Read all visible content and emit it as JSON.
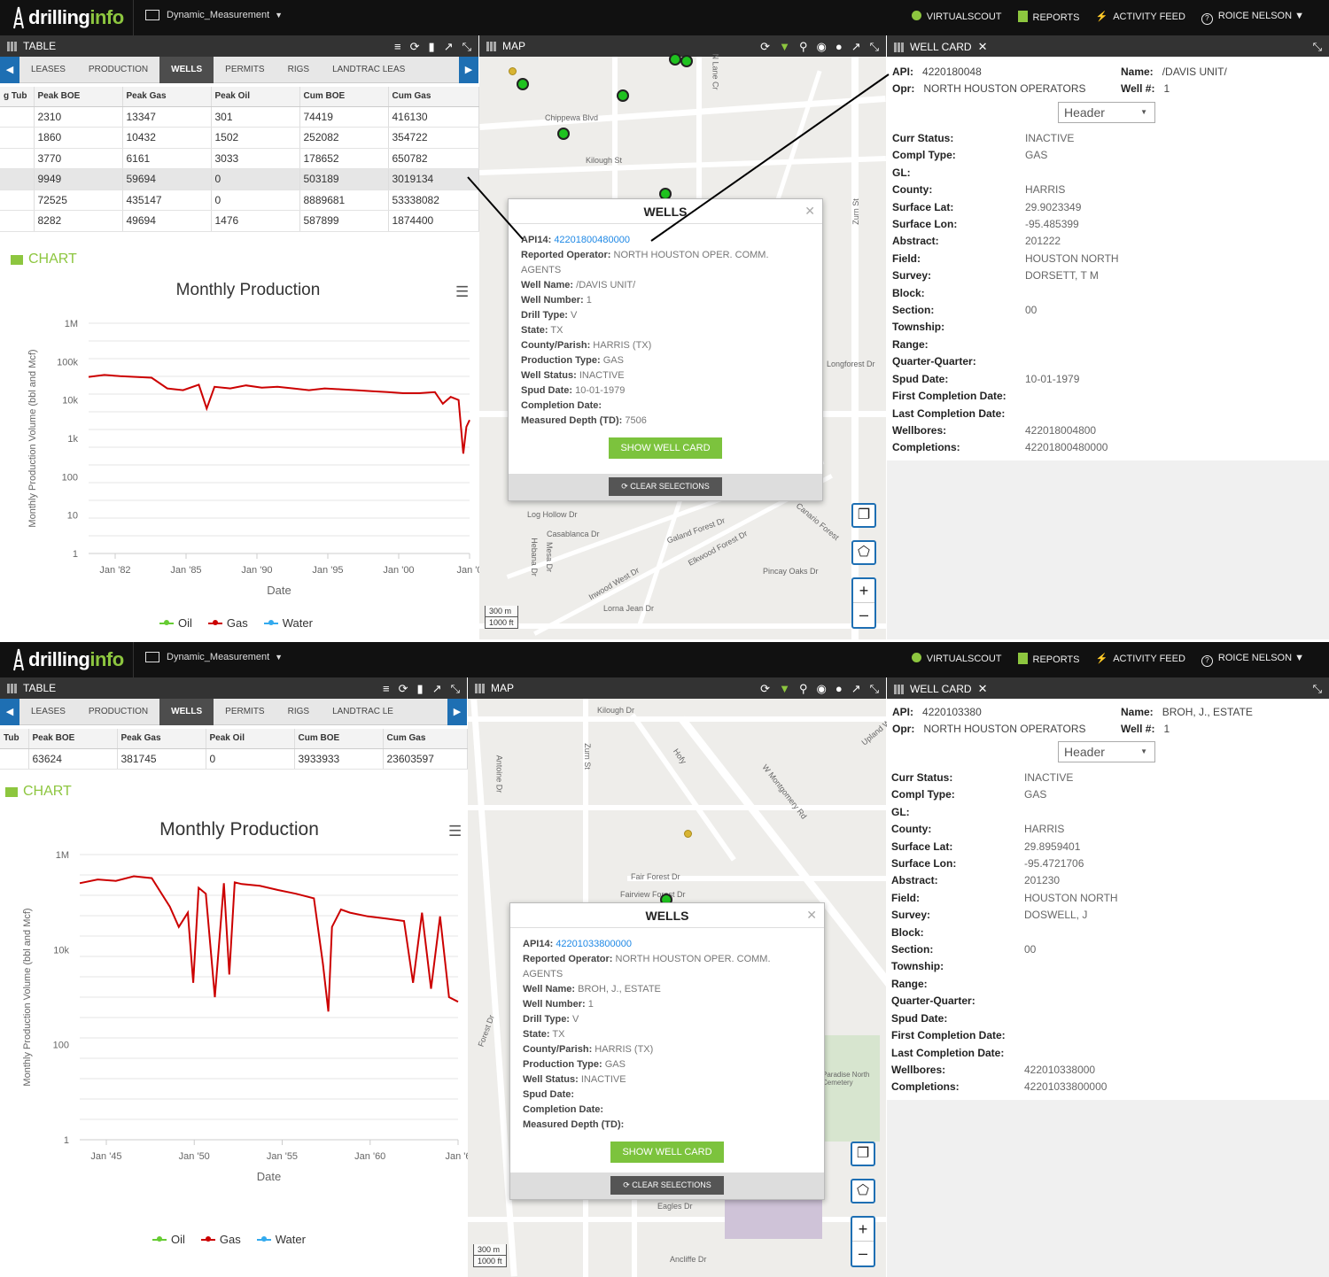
{
  "screens": [
    {
      "topbar": {
        "logo_a": "drilling",
        "logo_b": "info",
        "workspace": "Dynamic_Measurement",
        "nav": [
          "VIRTUALSCOUT",
          "REPORTS",
          "ACTIVITY FEED",
          "ROICE NELSON"
        ]
      },
      "table_panel": {
        "title": "TABLE",
        "tabs": [
          "LEASES",
          "PRODUCTION",
          "WELLS",
          "PERMITS",
          "RIGS",
          "LANDTRAC LEAS"
        ],
        "active_tab": "WELLS",
        "columns": [
          "g Tub",
          "Peak BOE",
          "Peak Gas",
          "Peak Oil",
          "Cum BOE",
          "Cum Gas"
        ],
        "rows": [
          [
            "",
            "2310",
            "13347",
            "301",
            "74419",
            "416130"
          ],
          [
            "",
            "1860",
            "10432",
            "1502",
            "252082",
            "354722"
          ],
          [
            "",
            "3770",
            "6161",
            "3033",
            "178652",
            "650782"
          ],
          [
            "",
            "9949",
            "59694",
            "0",
            "503189",
            "3019134"
          ],
          [
            "",
            "72525",
            "435147",
            "0",
            "8889681",
            "53338082"
          ],
          [
            "",
            "8282",
            "49694",
            "1476",
            "587899",
            "1874400"
          ]
        ]
      },
      "chart_panel": {
        "title": "CHART",
        "menu_icon": "hamburger-icon"
      },
      "chart_data": {
        "type": "line",
        "title": "Monthly Production",
        "xlabel": "Date",
        "ylabel": "Monthly Production Volume (bbl and Mcf)",
        "yscale": "log",
        "ylim": [
          1,
          1000000
        ],
        "y_ticks": [
          "1M",
          "100k",
          "10k",
          "1k",
          "100",
          "10",
          "1"
        ],
        "x_ticks": [
          "Jan '82",
          "Jan '85",
          "Jan '90",
          "Jan '95",
          "Jan '00",
          "Jan '0"
        ],
        "legend": [
          "Oil",
          "Gas",
          "Water"
        ],
        "legend_position": "bottom",
        "series": [
          {
            "name": "Gas",
            "color": "#cc0000",
            "x": [
              1980.0,
              1981.0,
              1982.0,
              1983.0,
              1984.0,
              1985.0,
              1986.0,
              1987.0,
              1987.5,
              1988.0,
              1989.0,
              1990.0,
              1991.0,
              1992.0,
              1993.0,
              1994.0,
              1995.0,
              1996.0,
              1997.0,
              1998.0,
              1999.0,
              2000.0,
              2001.0,
              2002.0,
              2002.5,
              2003.0,
              2003.5,
              2003.8,
              2004.0,
              2004.2
            ],
            "y": [
              40000,
              45000,
              42000,
              40000,
              38000,
              20000,
              18000,
              25000,
              6000,
              22000,
              20000,
              24000,
              21000,
              22000,
              20000,
              18000,
              20000,
              19000,
              18000,
              17000,
              16000,
              15000,
              15000,
              16000,
              8000,
              12000,
              10000,
              400,
              2000,
              3000
            ]
          }
        ]
      },
      "map_panel": {
        "title": "MAP",
        "streets": [
          "Chippewa Blvd",
          "Kilough St",
          "N Lane Cr",
          "Zurn St",
          "Log Hollow Dr",
          "Casablanca Dr",
          "Galand Forest Dr",
          "Elkwood Forest Dr",
          "Inwood West Dr",
          "Pincay Oaks Dr",
          "Lorna Jean Dr",
          "Hebana Dr",
          "Mesa Dr",
          "Longforest Dr",
          "Canario Forest"
        ],
        "scale": [
          "300 m",
          "1000 ft"
        ],
        "popup": {
          "title": "WELLS",
          "api_label": "API14:",
          "api": "42201800480000",
          "fields": [
            [
              "Reported Operator:",
              "NORTH HOUSTON OPER. COMM. AGENTS"
            ],
            [
              "Well Name:",
              "/DAVIS UNIT/"
            ],
            [
              "Well Number:",
              "1"
            ],
            [
              "Drill Type:",
              "V"
            ],
            [
              "State:",
              "TX"
            ],
            [
              "County/Parish:",
              "HARRIS (TX)"
            ],
            [
              "Production Type:",
              "GAS"
            ],
            [
              "Well Status:",
              "INACTIVE"
            ],
            [
              "Spud Date:",
              "10-01-1979"
            ],
            [
              "Completion Date:",
              ""
            ],
            [
              "Measured Depth (TD):",
              "7506"
            ]
          ],
          "show_btn": "SHOW WELL CARD",
          "clear_btn": "CLEAR SELECTIONS"
        }
      },
      "well_card": {
        "title": "WELL CARD",
        "api_label": "API:",
        "api": "4220180048",
        "name_label": "Name:",
        "name": "/DAVIS UNIT/",
        "opr_label": "Opr:",
        "opr": "NORTH HOUSTON OPERATORS",
        "wellno_label": "Well #:",
        "wellno": "1",
        "select": "Header",
        "fields": [
          [
            "Curr Status:",
            "INACTIVE"
          ],
          [
            "Compl Type:",
            "GAS"
          ],
          [
            "GL:",
            ""
          ],
          [
            "County:",
            "HARRIS"
          ],
          [
            "Surface Lat:",
            "29.9023349"
          ],
          [
            "Surface Lon:",
            "-95.485399"
          ],
          [
            "Abstract:",
            "201222"
          ],
          [
            "Field:",
            "HOUSTON NORTH"
          ],
          [
            "Survey:",
            "DORSETT, T M"
          ],
          [
            "Block:",
            ""
          ],
          [
            "Section:",
            "00"
          ],
          [
            "Township:",
            ""
          ],
          [
            "Range:",
            ""
          ],
          [
            "Quarter-Quarter:",
            ""
          ],
          [
            "Spud Date:",
            "10-01-1979"
          ],
          [
            "First Completion Date:",
            ""
          ],
          [
            "Last Completion Date:",
            ""
          ],
          [
            "Wellbores:",
            "422018004800"
          ],
          [
            "Completions:",
            "42201800480000"
          ]
        ]
      }
    },
    {
      "topbar": {
        "logo_a": "drilling",
        "logo_b": "info",
        "workspace": "Dynamic_Measurement",
        "nav": [
          "VIRTUALSCOUT",
          "REPORTS",
          "ACTIVITY FEED",
          "ROICE NELSON"
        ]
      },
      "table_panel": {
        "title": "TABLE",
        "tabs": [
          "LEASES",
          "PRODUCTION",
          "WELLS",
          "PERMITS",
          "RIGS",
          "LANDTRAC LE"
        ],
        "active_tab": "WELLS",
        "columns": [
          "Tub",
          "Peak BOE",
          "Peak Gas",
          "Peak Oil",
          "Cum BOE",
          "Cum Gas"
        ],
        "rows": [
          [
            "",
            "63624",
            "381745",
            "0",
            "3933933",
            "23603597"
          ]
        ]
      },
      "chart_panel": {
        "title": "CHART",
        "menu_icon": "hamburger-icon"
      },
      "chart_data": {
        "type": "line",
        "title": "Monthly Production",
        "xlabel": "Date",
        "ylabel": "Monthly Production Volume (bbl and Mcf)",
        "yscale": "log",
        "ylim": [
          1,
          1000000
        ],
        "y_ticks": [
          "1M",
          "10k",
          "100",
          "1"
        ],
        "x_ticks": [
          "Jan '45",
          "Jan '50",
          "Jan '55",
          "Jan '60",
          "Jan '6"
        ],
        "legend": [
          "Oil",
          "Gas",
          "Water"
        ],
        "legend_position": "bottom",
        "series": [
          {
            "name": "Gas",
            "color": "#cc0000",
            "x": [
              1945.0,
              1946.0,
              1947.0,
              1948.0,
              1949.0,
              1950.0,
              1950.5,
              1951.0,
              1951.3,
              1951.6,
              1952.0,
              1952.5,
              1953.0,
              1953.3,
              1953.6,
              1954.0,
              1955.0,
              1956.0,
              1957.0,
              1958.0,
              1958.5,
              1958.8,
              1959.0,
              1959.5,
              1960.0,
              1961.0,
              1962.0,
              1963.0,
              1963.5,
              1964.0,
              1964.5,
              1965.0,
              1965.5,
              1966.0
            ],
            "y": [
              250000,
              300000,
              280000,
              350000,
              320000,
              80000,
              30000,
              60000,
              2000,
              200000,
              150000,
              1000,
              250000,
              3000,
              260000,
              240000,
              220000,
              180000,
              150000,
              120000,
              5000,
              500,
              30000,
              70000,
              60000,
              50000,
              45000,
              40000,
              2000,
              60000,
              1500,
              50000,
              1000,
              800
            ]
          }
        ]
      },
      "map_panel": {
        "title": "MAP",
        "streets": [
          "Kilough Dr",
          "Zurn St",
          "Antoine Dr",
          "Hofy",
          "W Montgomery Rd",
          "Fair Forest Dr",
          "Fairview Forest Dr",
          "Eagles Dr",
          "Ancliffe Dr",
          "Upland Way",
          "Forest Dr",
          "Paradise North Cemetery"
        ],
        "scale": [
          "300 m",
          "1000 ft"
        ],
        "popup": {
          "title": "WELLS",
          "api_label": "API14:",
          "api": "42201033800000",
          "fields": [
            [
              "Reported Operator:",
              "NORTH HOUSTON OPER. COMM. AGENTS"
            ],
            [
              "Well Name:",
              "BROH, J., ESTATE"
            ],
            [
              "Well Number:",
              "1"
            ],
            [
              "Drill Type:",
              "V"
            ],
            [
              "State:",
              "TX"
            ],
            [
              "County/Parish:",
              "HARRIS (TX)"
            ],
            [
              "Production Type:",
              "GAS"
            ],
            [
              "Well Status:",
              "INACTIVE"
            ],
            [
              "Spud Date:",
              ""
            ],
            [
              "Completion Date:",
              ""
            ],
            [
              "Measured Depth (TD):",
              ""
            ]
          ],
          "show_btn": "SHOW WELL CARD",
          "clear_btn": "CLEAR SELECTIONS"
        }
      },
      "well_card": {
        "title": "WELL CARD",
        "api_label": "API:",
        "api": "4220103380",
        "name_label": "Name:",
        "name": "BROH, J., ESTATE",
        "opr_label": "Opr:",
        "opr": "NORTH HOUSTON OPERATORS",
        "wellno_label": "Well #:",
        "wellno": "1",
        "select": "Header",
        "fields": [
          [
            "Curr Status:",
            "INACTIVE"
          ],
          [
            "Compl Type:",
            "GAS"
          ],
          [
            "GL:",
            ""
          ],
          [
            "County:",
            "HARRIS"
          ],
          [
            "Surface Lat:",
            "29.8959401"
          ],
          [
            "Surface Lon:",
            "-95.4721706"
          ],
          [
            "Abstract:",
            "201230"
          ],
          [
            "Field:",
            "HOUSTON NORTH"
          ],
          [
            "Survey:",
            "DOSWELL, J"
          ],
          [
            "Block:",
            ""
          ],
          [
            "Section:",
            "00"
          ],
          [
            "Township:",
            ""
          ],
          [
            "Range:",
            ""
          ],
          [
            "Quarter-Quarter:",
            ""
          ],
          [
            "Spud Date:",
            ""
          ],
          [
            "First Completion Date:",
            ""
          ],
          [
            "Last Completion Date:",
            ""
          ],
          [
            "Wellbores:",
            "422010338000"
          ],
          [
            "Completions:",
            "42201033800000"
          ]
        ]
      }
    }
  ]
}
